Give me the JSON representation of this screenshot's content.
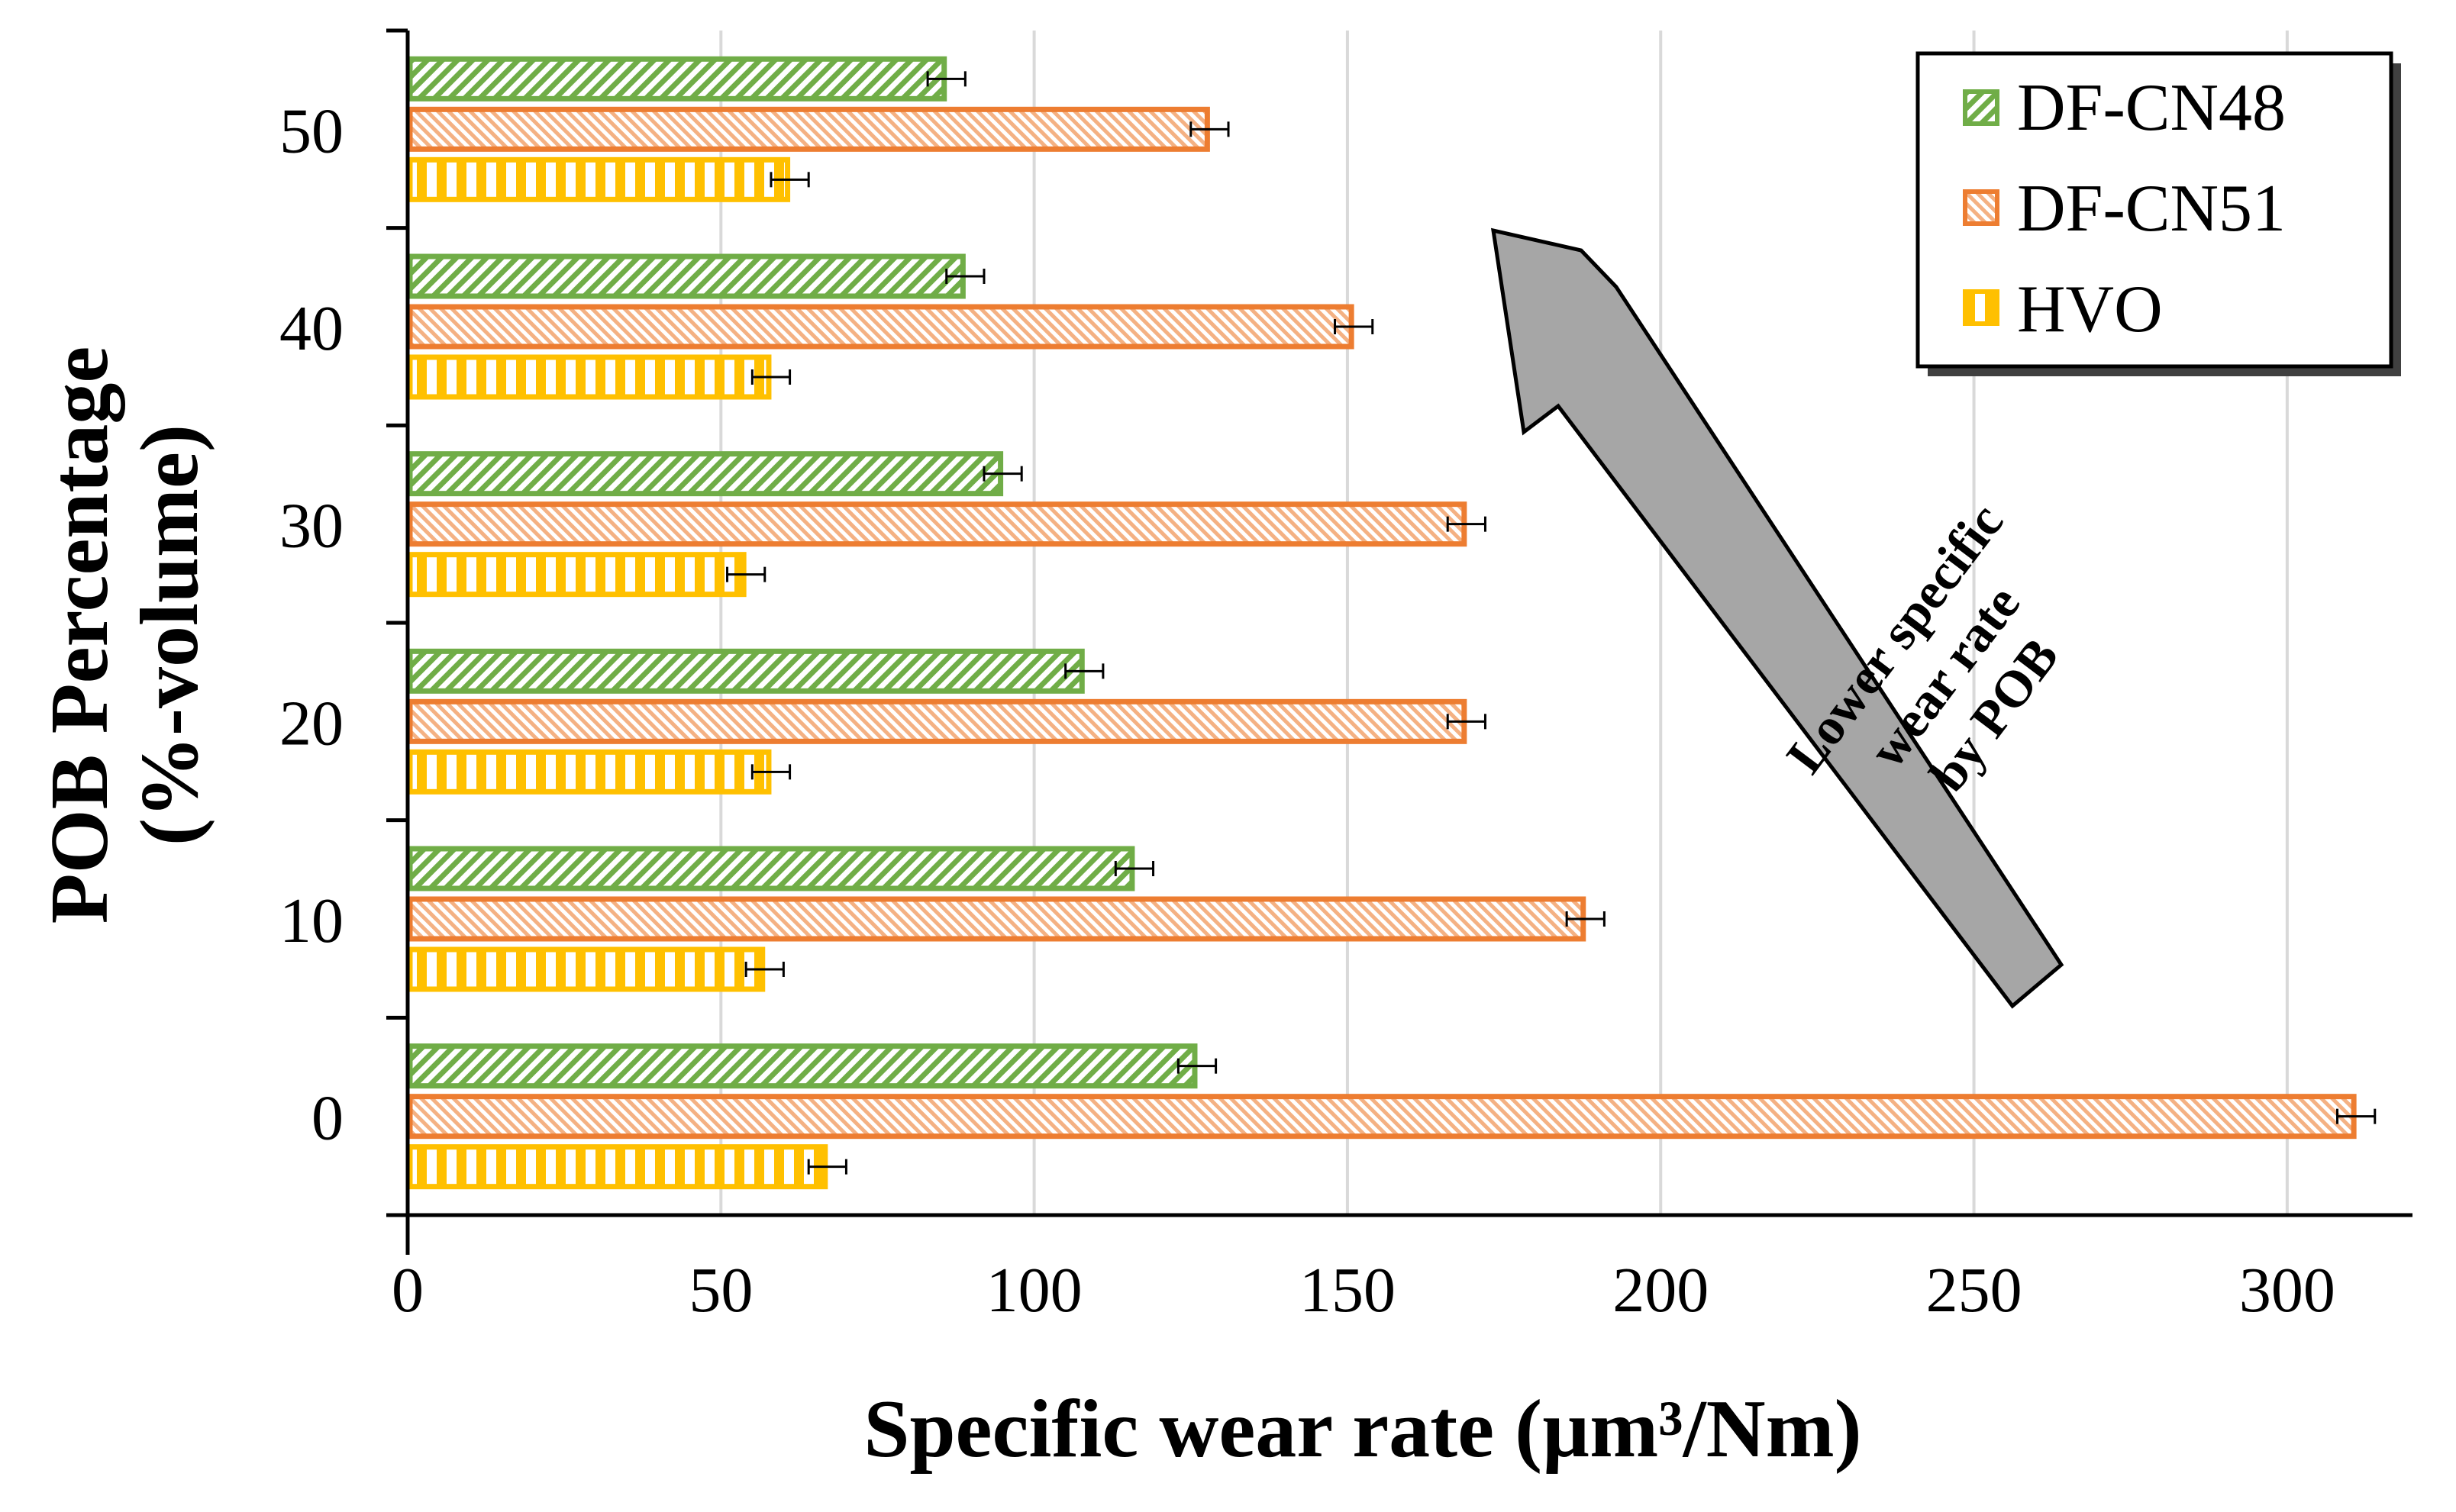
{
  "chart_data": {
    "type": "bar",
    "orientation": "horizontal",
    "categories": [
      "0",
      "10",
      "20",
      "30",
      "40",
      "50"
    ],
    "series": [
      {
        "name": "DF-CN48",
        "values": [
          126,
          116,
          108,
          95,
          89,
          86
        ],
        "errors": [
          3,
          3,
          3,
          3,
          3,
          3
        ],
        "color": "#70AD47",
        "pattern": "diagonal"
      },
      {
        "name": "DF-CN51",
        "values": [
          311,
          188,
          169,
          169,
          151,
          128
        ],
        "errors": [
          3,
          3,
          3,
          3,
          3,
          3
        ],
        "color": "#ED7D31",
        "pattern": "dense-diagonal"
      },
      {
        "name": "HVO",
        "values": [
          67,
          57,
          58,
          54,
          58,
          61
        ],
        "errors": [
          3,
          3,
          3,
          3,
          3,
          3
        ],
        "color": "#FFC000",
        "pattern": "vertical"
      }
    ],
    "xlabel": "Specific wear rate (µm³/Nm)",
    "ylabel_line1": "POB Percentage",
    "ylabel_line2": "(%-volume)",
    "xlim": [
      0,
      320
    ],
    "xticks": [
      "0",
      "50",
      "100",
      "150",
      "200",
      "250",
      "300"
    ],
    "grid": "vertical",
    "legend_position": "top-right",
    "annotation": {
      "lines": [
        "Lower specific",
        "wear rate",
        "by POB"
      ],
      "arrow_direction": "up-left",
      "arrow_color": "#A6A6A6"
    }
  }
}
